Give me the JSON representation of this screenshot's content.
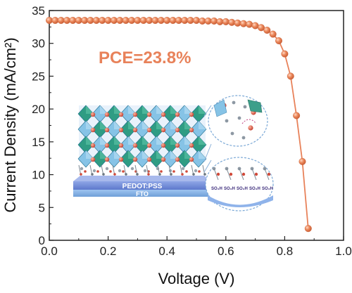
{
  "chart_data": {
    "type": "line",
    "xlabel": "Voltage (V)",
    "ylabel": "Current Density (mA/cm²)",
    "xlim": [
      0.0,
      1.0
    ],
    "ylim": [
      0,
      35
    ],
    "xticks": [
      "0.0",
      "0.2",
      "0.4",
      "0.6",
      "0.8",
      "1.0"
    ],
    "yticks": [
      "0",
      "5",
      "10",
      "15",
      "20",
      "25",
      "30",
      "35"
    ],
    "grid": false,
    "series": [
      {
        "color": "#E8825A",
        "x": [
          0.0,
          0.02,
          0.04,
          0.06,
          0.08,
          0.1,
          0.12,
          0.14,
          0.16,
          0.18,
          0.2,
          0.22,
          0.24,
          0.26,
          0.28,
          0.3,
          0.32,
          0.34,
          0.36,
          0.38,
          0.4,
          0.42,
          0.44,
          0.46,
          0.48,
          0.5,
          0.52,
          0.54,
          0.56,
          0.58,
          0.6,
          0.62,
          0.64,
          0.66,
          0.68,
          0.7,
          0.72,
          0.74,
          0.76,
          0.78,
          0.8,
          0.82,
          0.84,
          0.86,
          0.88
        ],
        "y": [
          33.5,
          33.5,
          33.5,
          33.5,
          33.5,
          33.5,
          33.5,
          33.5,
          33.5,
          33.5,
          33.5,
          33.5,
          33.5,
          33.5,
          33.5,
          33.5,
          33.5,
          33.5,
          33.5,
          33.5,
          33.5,
          33.5,
          33.5,
          33.5,
          33.5,
          33.5,
          33.4,
          33.4,
          33.4,
          33.3,
          33.3,
          33.2,
          33.1,
          33.0,
          32.9,
          32.7,
          32.4,
          32.0,
          31.4,
          30.4,
          28.4,
          25.0,
          19.0,
          12.0,
          1.8
        ]
      }
    ],
    "annotations": [
      {
        "text": "PCE=23.8%",
        "color": "#E8825A"
      }
    ],
    "inset_labels": {
      "layer1": "PEDOT:PSS",
      "layer2": "FTO",
      "so3h": "SO₃H"
    }
  }
}
